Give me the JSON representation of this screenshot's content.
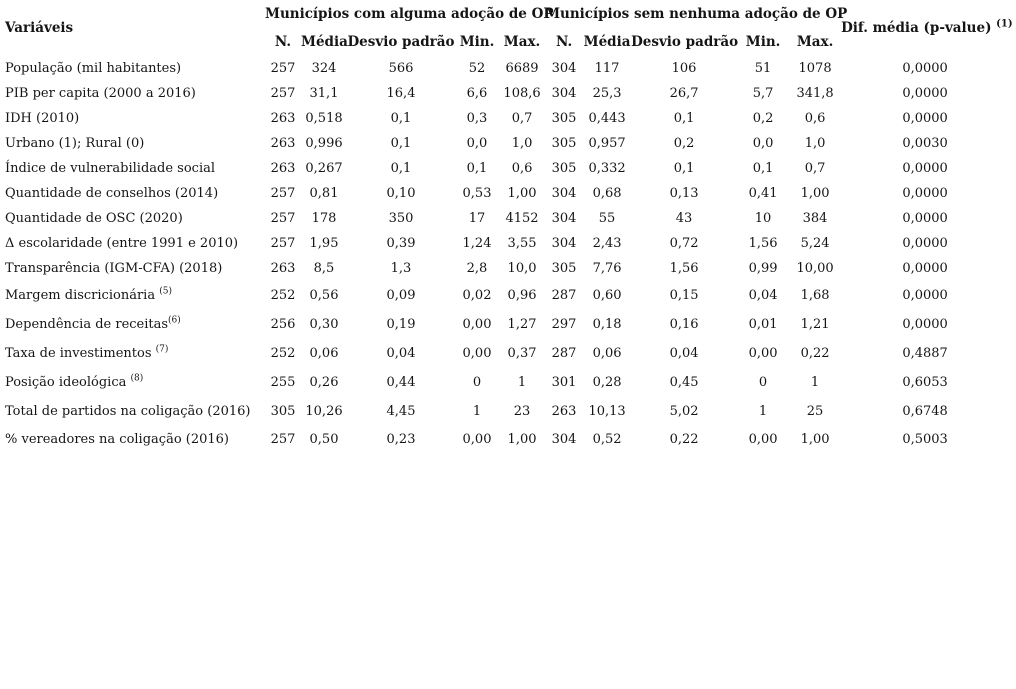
{
  "page": {
    "background_color": "#ffffff",
    "text_color": "#151515"
  },
  "table": {
    "variables_header": "Variáveis",
    "group1_header": "Municípios com alguma adoção de OP",
    "group2_header": "Municípios sem nenhuma adoção de OP",
    "stat_headers": [
      "N.",
      "Média",
      "Desvio padrão",
      "Min.",
      "Max."
    ],
    "diff_header": "Dif. média (p-value)",
    "diff_header_superscript": "(1)",
    "rows": [
      {
        "variable": "População (mil habitantes)",
        "superscript": "",
        "with_op": [
          "257",
          "324",
          "566",
          "52",
          "6689"
        ],
        "without_op": [
          "304",
          "117",
          "106",
          "51",
          "1078"
        ],
        "diff": "0,0000"
      },
      {
        "variable": "PIB per capita (2000 a 2016)",
        "superscript": "",
        "with_op": [
          "257",
          "31,1",
          "16,4",
          "6,6",
          "108,6"
        ],
        "without_op": [
          "304",
          "25,3",
          "26,7",
          "5,7",
          "341,8"
        ],
        "diff": "0,0000"
      },
      {
        "variable": "IDH (2010)",
        "superscript": "",
        "with_op": [
          "263",
          "0,518",
          "0,1",
          "0,3",
          "0,7"
        ],
        "without_op": [
          "305",
          "0,443",
          "0,1",
          "0,2",
          "0,6"
        ],
        "diff": "0,0000"
      },
      {
        "variable": "Urbano (1); Rural (0)",
        "superscript": "",
        "with_op": [
          "263",
          "0,996",
          "0,1",
          "0,0",
          "1,0"
        ],
        "without_op": [
          "305",
          "0,957",
          "0,2",
          "0,0",
          "1,0"
        ],
        "diff": "0,0030"
      },
      {
        "variable": "Índice de vulnerabilidade social",
        "superscript": "",
        "with_op": [
          "263",
          "0,267",
          "0,1",
          "0,1",
          "0,6"
        ],
        "without_op": [
          "305",
          "0,332",
          "0,1",
          "0,1",
          "0,7"
        ],
        "diff": "0,0000"
      },
      {
        "variable": "Quantidade de conselhos (2014)",
        "superscript": "",
        "with_op": [
          "257",
          "0,81",
          "0,10",
          "0,53",
          "1,00"
        ],
        "without_op": [
          "304",
          "0,68",
          "0,13",
          "0,41",
          "1,00"
        ],
        "diff": "0,0000"
      },
      {
        "variable": "Quantidade de OSC (2020)",
        "superscript": "",
        "with_op": [
          "257",
          "178",
          "350",
          "17",
          "4152"
        ],
        "without_op": [
          "304",
          "55",
          "43",
          "10",
          "384"
        ],
        "diff": "0,0000"
      },
      {
        "variable": "Δ escolaridade (entre 1991 e 2010)",
        "superscript": "",
        "with_op": [
          "257",
          "1,95",
          "0,39",
          "1,24",
          "3,55"
        ],
        "without_op": [
          "304",
          "2,43",
          "0,72",
          "1,56",
          "5,24"
        ],
        "diff": "0,0000"
      },
      {
        "variable": "Transparência (IGM-CFA) (2018)",
        "superscript": "",
        "with_op": [
          "263",
          "8,5",
          "1,3",
          "2,8",
          "10,0"
        ],
        "without_op": [
          "305",
          "7,76",
          "1,56",
          "0,99",
          "10,00"
        ],
        "diff": "0,0000"
      },
      {
        "variable": "Margem discricionária ",
        "superscript": "(5)",
        "with_op": [
          "252",
          "0,56",
          "0,09",
          "0,02",
          "0,96"
        ],
        "without_op": [
          "287",
          "0,60",
          "0,15",
          "0,04",
          "1,68"
        ],
        "diff": "0,0000"
      },
      {
        "variable": "Dependência de receitas",
        "superscript": "(6)",
        "with_op": [
          "256",
          "0,30",
          "0,19",
          "0,00",
          "1,27"
        ],
        "without_op": [
          "297",
          "0,18",
          "0,16",
          "0,01",
          "1,21"
        ],
        "diff": "0,0000"
      },
      {
        "variable": "Taxa de investimentos ",
        "superscript": "(7)",
        "with_op": [
          "252",
          "0,06",
          "0,04",
          "0,00",
          "0,37"
        ],
        "without_op": [
          "287",
          "0,06",
          "0,04",
          "0,00",
          "0,22"
        ],
        "diff": "0,4887"
      },
      {
        "variable": "Posição ideológica ",
        "superscript": "(8)",
        "with_op": [
          "255",
          "0,26",
          "0,44",
          "0",
          "1"
        ],
        "without_op": [
          "301",
          "0,28",
          "0,45",
          "0",
          "1"
        ],
        "diff": "0,6053"
      },
      {
        "variable": "Total de partidos na coligação (2016)",
        "superscript": "",
        "with_op": [
          "305",
          "10,26",
          "4,45",
          "1",
          "23"
        ],
        "without_op": [
          "263",
          "10,13",
          "5,02",
          "1",
          "25"
        ],
        "diff": "0,6748"
      },
      {
        "variable": "% vereadores na coligação (2016)",
        "superscript": "",
        "with_op": [
          "257",
          "0,50",
          "0,23",
          "0,00",
          "1,00"
        ],
        "without_op": [
          "304",
          "0,52",
          "0,22",
          "0,00",
          "1,00"
        ],
        "diff": "0,5003"
      }
    ]
  }
}
